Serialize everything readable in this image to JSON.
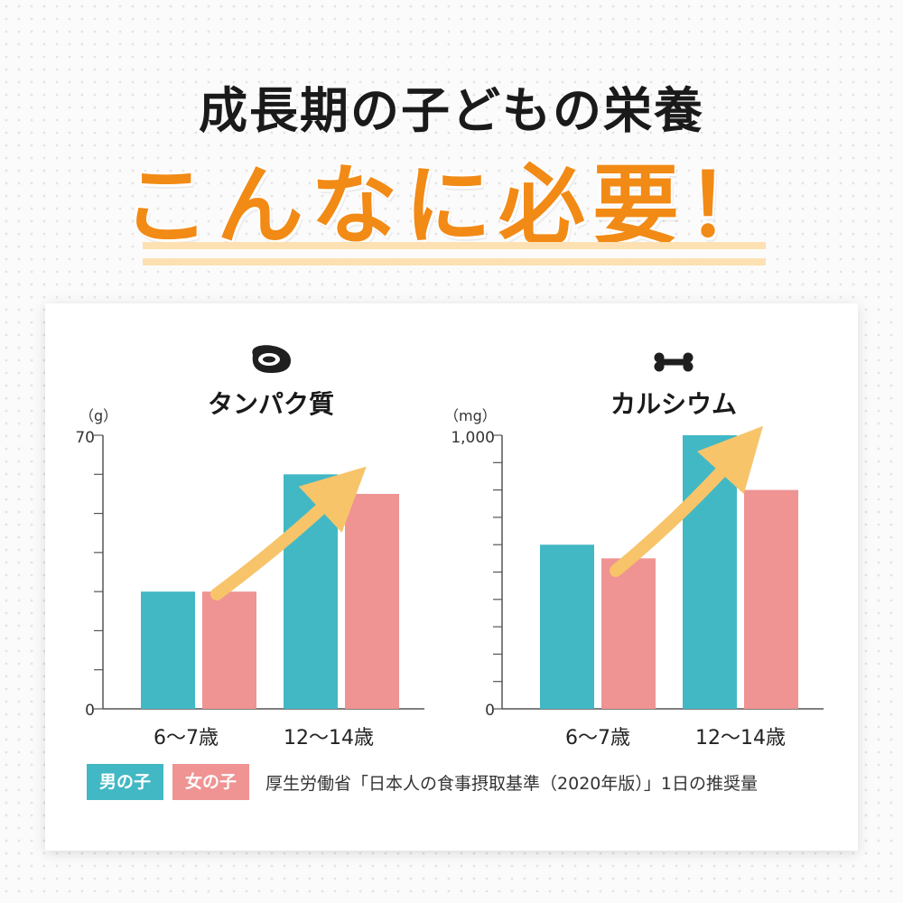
{
  "header": {
    "headline": "成長期の子どもの栄養",
    "subhead": "こんなに必要！"
  },
  "colors": {
    "boys": "#42b8c5",
    "girls": "#ef9393",
    "accent": "#f28a16",
    "arrow": "#f7c46a"
  },
  "chart_data": [
    {
      "type": "bar",
      "title": "タンパク質",
      "icon": "meat-icon",
      "unit": "（g）",
      "categories": [
        "6〜7歳",
        "12〜14歳"
      ],
      "series": [
        {
          "name": "男の子",
          "values": [
            30,
            60
          ]
        },
        {
          "name": "女の子",
          "values": [
            30,
            55
          ]
        }
      ],
      "ylim": [
        0,
        70
      ],
      "y_tick_labels": [
        "0",
        "70"
      ],
      "minor_ticks": 7,
      "grid": false
    },
    {
      "type": "bar",
      "title": "カルシウム",
      "icon": "bone-icon",
      "unit": "（mg）",
      "categories": [
        "6〜7歳",
        "12〜14歳"
      ],
      "series": [
        {
          "name": "男の子",
          "values": [
            600,
            1000
          ]
        },
        {
          "name": "女の子",
          "values": [
            550,
            800
          ]
        }
      ],
      "ylim": [
        0,
        1000
      ],
      "y_tick_labels": [
        "0",
        "1,000"
      ],
      "minor_ticks": 10,
      "grid": false
    }
  ],
  "legend": {
    "boys": "男の子",
    "girls": "女の子",
    "source": "厚生労働省「日本人の食事摂取基準（2020年版）」1日の推奨量"
  }
}
